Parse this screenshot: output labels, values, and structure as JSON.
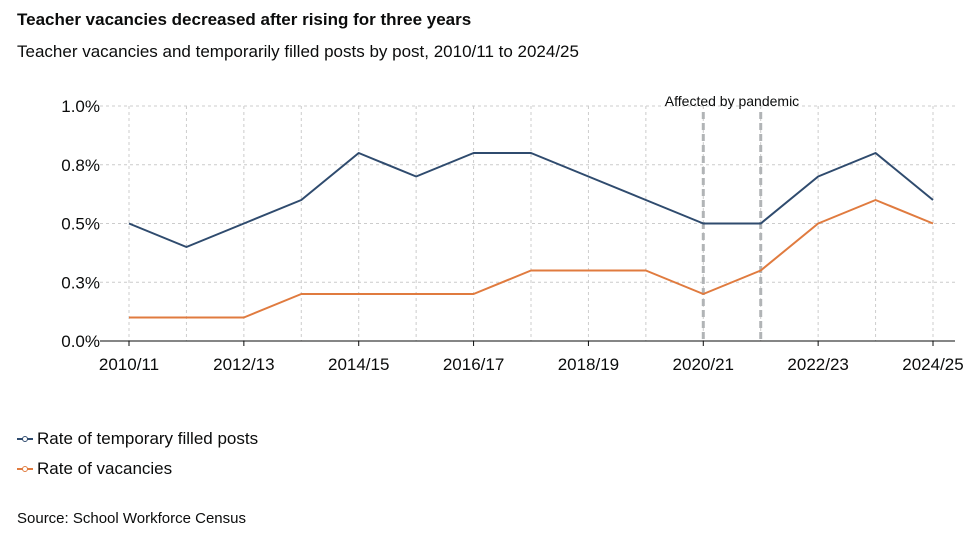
{
  "title": "Teacher vacancies decreased after rising for three years",
  "subtitle": "Teacher vacancies and temporarily filled posts by post, 2010/11 to 2024/25",
  "source": "Source: School Workforce Census",
  "colors": {
    "temporary": "#2f4b6e",
    "vacancies": "#e07b3f",
    "grid": "#cccccc",
    "annotation": "#b1b4b6"
  },
  "chart_data": {
    "type": "line",
    "x": [
      "2010/11",
      "2011/12",
      "2012/13",
      "2013/14",
      "2014/15",
      "2015/16",
      "2016/17",
      "2017/18",
      "2018/19",
      "2019/20",
      "2020/21",
      "2021/22",
      "2022/23",
      "2023/24",
      "2024/25"
    ],
    "x_tick_labels": [
      "2010/11",
      "2012/13",
      "2014/15",
      "2016/17",
      "2018/19",
      "2020/21",
      "2022/23",
      "2024/25"
    ],
    "y_tick_labels": [
      "0.0%",
      "0.3%",
      "0.5%",
      "0.8%",
      "1.0%"
    ],
    "ylim": [
      0,
      1.0
    ],
    "grid": true,
    "series": [
      {
        "name": "Rate of temporary filled posts",
        "color": "#2f4b6e",
        "values": [
          0.5,
          0.4,
          0.5,
          0.6,
          0.8,
          0.7,
          0.8,
          0.8,
          0.7,
          0.6,
          0.5,
          0.5,
          0.7,
          0.8,
          0.6
        ]
      },
      {
        "name": "Rate of vacancies",
        "color": "#e07b3f",
        "values": [
          0.1,
          0.1,
          0.1,
          0.2,
          0.2,
          0.2,
          0.2,
          0.3,
          0.3,
          0.3,
          0.2,
          0.3,
          0.5,
          0.6,
          0.5
        ]
      }
    ],
    "annotation": {
      "label": "Affected by pandemic",
      "from": "2020/21",
      "to": "2021/22"
    },
    "legend_position": "bottom-left"
  }
}
